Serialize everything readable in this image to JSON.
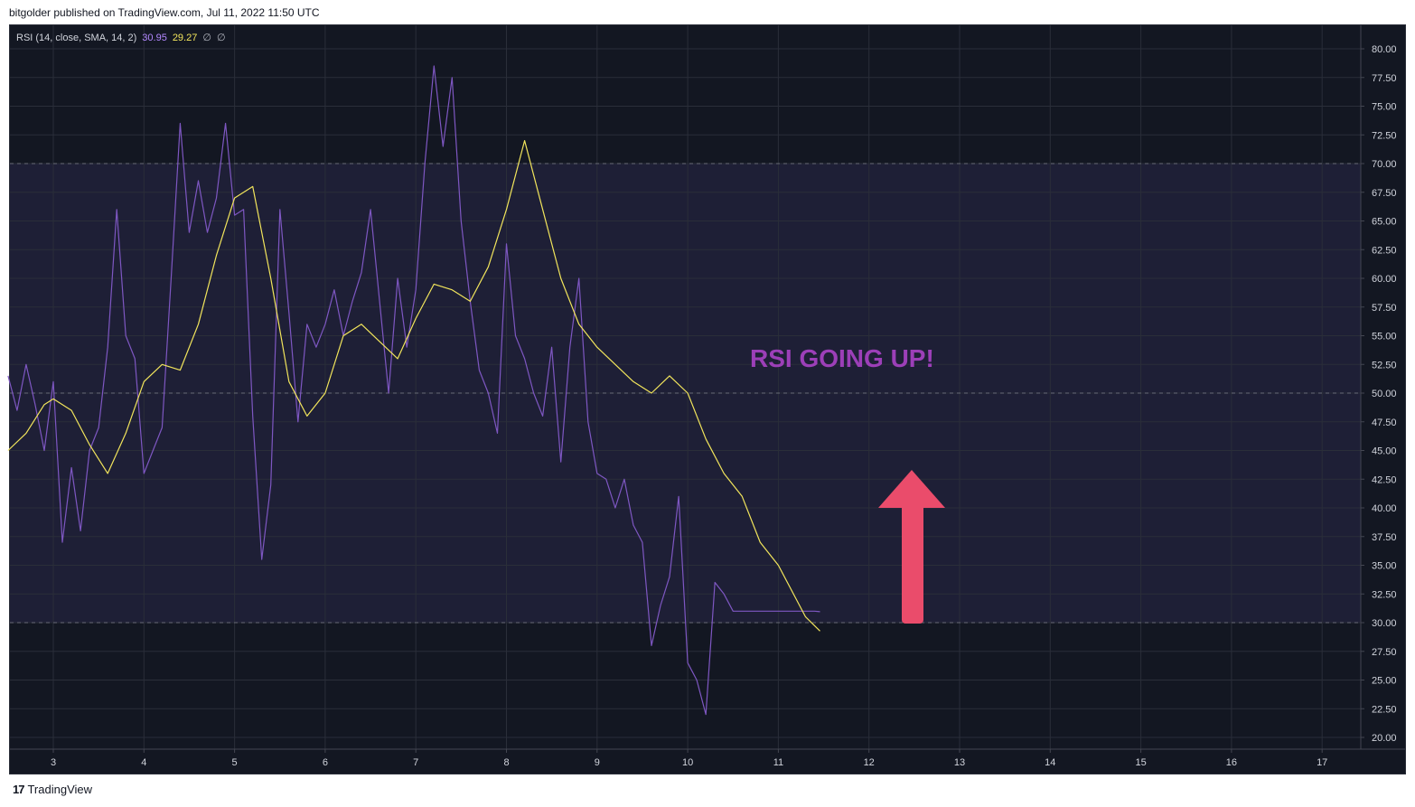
{
  "header": {
    "publisher_text": "bitgolder published on TradingView.com, Jul 11, 2022 11:50 UTC"
  },
  "legend": {
    "title": "RSI (14, close, SMA, 14, 2)",
    "rsi_value": "30.95",
    "ma_value": "29.27",
    "na1": "∅",
    "na2": "∅"
  },
  "annotation": {
    "text": "RSI GOING UP!"
  },
  "footer": {
    "brand": "TradingView",
    "logo_mark": "17"
  },
  "colors": {
    "background": "#131722",
    "band": "#1e1f36",
    "grid": "#2a2e39",
    "rsi_line": "#7e57c2",
    "ma_line": "#f2e55c",
    "annotation": "#9c3fb8",
    "arrow": "#ea4c6b",
    "axis_text": "#d1d4dc"
  },
  "chart_data": {
    "type": "line",
    "x_ticks": [
      "3",
      "4",
      "5",
      "6",
      "7",
      "8",
      "9",
      "10",
      "11",
      "12",
      "13",
      "14",
      "15",
      "16",
      "17"
    ],
    "y_ticks": [
      "20.00",
      "22.50",
      "25.00",
      "27.50",
      "30.00",
      "32.50",
      "35.00",
      "37.50",
      "40.00",
      "42.50",
      "45.00",
      "47.50",
      "50.00",
      "52.50",
      "55.00",
      "57.50",
      "60.00",
      "62.50",
      "65.00",
      "67.50",
      "70.00",
      "72.50",
      "75.00",
      "77.50",
      "80.00"
    ],
    "ylim": [
      20,
      80
    ],
    "xlim": [
      2.5,
      17.45
    ],
    "levels": {
      "upper": 70,
      "middle": 50,
      "lower": 30
    },
    "series": [
      {
        "name": "RSI",
        "x": [
          2.5,
          2.6,
          2.7,
          2.8,
          2.9,
          3.0,
          3.1,
          3.2,
          3.3,
          3.4,
          3.5,
          3.6,
          3.7,
          3.8,
          3.9,
          4.0,
          4.1,
          4.2,
          4.3,
          4.4,
          4.5,
          4.6,
          4.7,
          4.8,
          4.9,
          5.0,
          5.1,
          5.2,
          5.3,
          5.4,
          5.5,
          5.6,
          5.7,
          5.8,
          5.9,
          6.0,
          6.1,
          6.2,
          6.3,
          6.4,
          6.5,
          6.6,
          6.7,
          6.8,
          6.9,
          7.0,
          7.1,
          7.2,
          7.3,
          7.4,
          7.5,
          7.6,
          7.7,
          7.8,
          7.9,
          8.0,
          8.1,
          8.2,
          8.3,
          8.4,
          8.5,
          8.6,
          8.7,
          8.8,
          8.9,
          9.0,
          9.1,
          9.2,
          9.3,
          9.4,
          9.5,
          9.6,
          9.7,
          9.8,
          9.9,
          10.0,
          10.1,
          10.2,
          10.3,
          10.4,
          10.5,
          10.6,
          10.7,
          10.8,
          10.9,
          11.0,
          11.1,
          11.2,
          11.3,
          11.4,
          11.46
        ],
        "values": [
          51.5,
          48.5,
          52.5,
          49.0,
          45.0,
          51.0,
          37.0,
          43.5,
          38.0,
          45.0,
          47.0,
          54.0,
          66.0,
          55.0,
          53.0,
          43.0,
          45.0,
          47.0,
          60.0,
          73.5,
          64.0,
          68.5,
          64.0,
          67.0,
          73.5,
          65.5,
          66.0,
          48.0,
          35.5,
          42.0,
          66.0,
          57.0,
          47.5,
          56.0,
          54.0,
          56.0,
          59.0,
          55.0,
          58.0,
          60.5,
          66.0,
          58.0,
          50.0,
          60.0,
          54.0,
          59.0,
          70.0,
          78.5,
          71.5,
          77.5,
          65.0,
          58.0,
          52.0,
          50.0,
          46.5,
          63.0,
          55.0,
          53.0,
          50.0,
          48.0,
          54.0,
          44.0,
          54.0,
          60.0,
          47.5,
          43.0,
          42.5,
          40.0,
          42.5,
          38.5,
          37.0,
          28.0,
          31.5,
          34.0,
          41.0,
          26.5,
          25.0,
          22.0,
          33.5,
          32.5,
          31.0,
          31.0,
          31.0,
          31.0,
          31.0,
          31.0,
          31.0,
          31.0,
          31.0,
          31.0,
          30.95
        ]
      },
      {
        "name": "RSI-based MA",
        "x": [
          2.5,
          2.7,
          2.9,
          3.0,
          3.2,
          3.4,
          3.6,
          3.8,
          4.0,
          4.2,
          4.4,
          4.6,
          4.8,
          5.0,
          5.2,
          5.4,
          5.6,
          5.8,
          6.0,
          6.2,
          6.4,
          6.6,
          6.8,
          7.0,
          7.2,
          7.4,
          7.6,
          7.8,
          8.0,
          8.2,
          8.4,
          8.6,
          8.8,
          9.0,
          9.2,
          9.4,
          9.6,
          9.8,
          10.0,
          10.2,
          10.4,
          10.6,
          10.8,
          11.0,
          11.2,
          11.3,
          11.46
        ],
        "values": [
          45.0,
          46.5,
          49.0,
          49.5,
          48.5,
          45.5,
          43.0,
          46.5,
          51.0,
          52.5,
          52.0,
          56.0,
          62.0,
          67.0,
          68.0,
          60.0,
          51.0,
          48.0,
          50.0,
          55.0,
          56.0,
          54.5,
          53.0,
          56.5,
          59.5,
          59.0,
          58.0,
          61.0,
          66.0,
          72.0,
          66.0,
          60.0,
          56.0,
          54.0,
          52.5,
          51.0,
          50.0,
          51.5,
          50.0,
          46.0,
          43.0,
          41.0,
          37.0,
          35.0,
          32.0,
          30.5,
          29.27
        ]
      }
    ]
  }
}
